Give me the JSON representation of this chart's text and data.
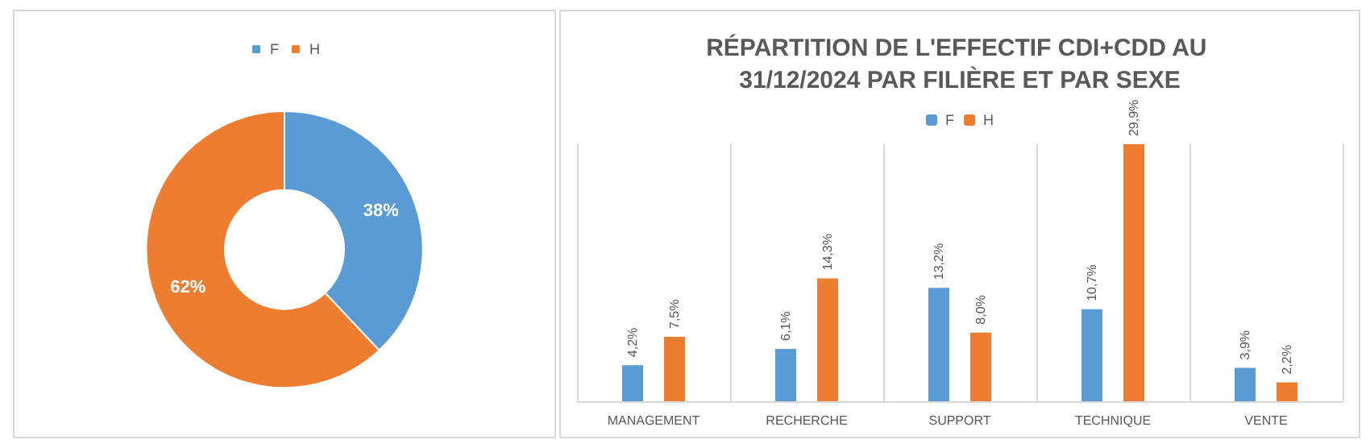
{
  "chart_data": [
    {
      "type": "donut",
      "categories": [
        "F",
        "H"
      ],
      "values": [
        38,
        62
      ],
      "colors": [
        "#5b9bd5",
        "#ed7d31"
      ],
      "value_labels": [
        "38%",
        "62%"
      ],
      "legend": "top"
    },
    {
      "type": "bar",
      "title": "RÉPARTITION DE L'EFFECTIF CDI+CDD AU 31/12/2024 PAR FILIÈRE ET PAR SEXE",
      "categories": [
        "MANAGEMENT",
        "RECHERCHE",
        "SUPPORT",
        "TECHNIQUE",
        "VENTE"
      ],
      "series": [
        {
          "name": "F",
          "color": "#5b9bd5",
          "values": [
            4.2,
            6.1,
            13.2,
            10.7,
            3.9
          ],
          "value_labels": [
            "4,2%",
            "6,1%",
            "13,2%",
            "10,7%",
            "3,9%"
          ]
        },
        {
          "name": "H",
          "color": "#ed7d31",
          "values": [
            7.5,
            14.3,
            8.0,
            29.9,
            2.2
          ],
          "value_labels": [
            "7,5%",
            "14,3%",
            "8,0%",
            "29,9%",
            "2,2%"
          ]
        }
      ],
      "legend": "top",
      "grid": "x"
    }
  ]
}
